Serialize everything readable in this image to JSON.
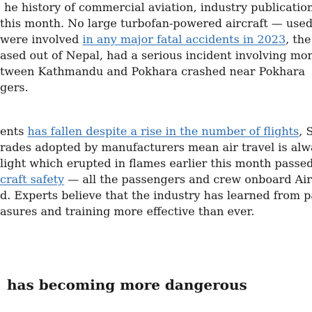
{
  "paragraph1": {
    "line1": "he history of commercial aviation, industry publication",
    "line2": "this month. No large turbofan-powered aircraft — used",
    "line3_pre": "were involved ",
    "line3_link": "in any major fatal accidents in 2023",
    "line3_post": ", the ou",
    "line4": "ased out of Nepal, had a serious incident involving more",
    "line5": "tween Kathmandu and Pokhara crashed near Pokhara",
    "line6": "gers."
  },
  "paragraph2": {
    "line1_pre": "ents ",
    "line1_link": "has fallen despite a rise in the number of flights",
    "line1_post": ", Sim",
    "line2_pre": "rades adopted by manufacturers mean air travel is al",
    "line2_post": "way",
    "line3_pre": "light which erupted in flames earlier this month passed t",
    "line4_link": "craft safety",
    "line4_post": " — all the passengers and crew onboard Airbu",
    "line5": "d. Experts believe that the industry has learned from pas",
    "line6": "asures and training more effective than ever."
  },
  "section_heading": "has becoming more dangerous"
}
